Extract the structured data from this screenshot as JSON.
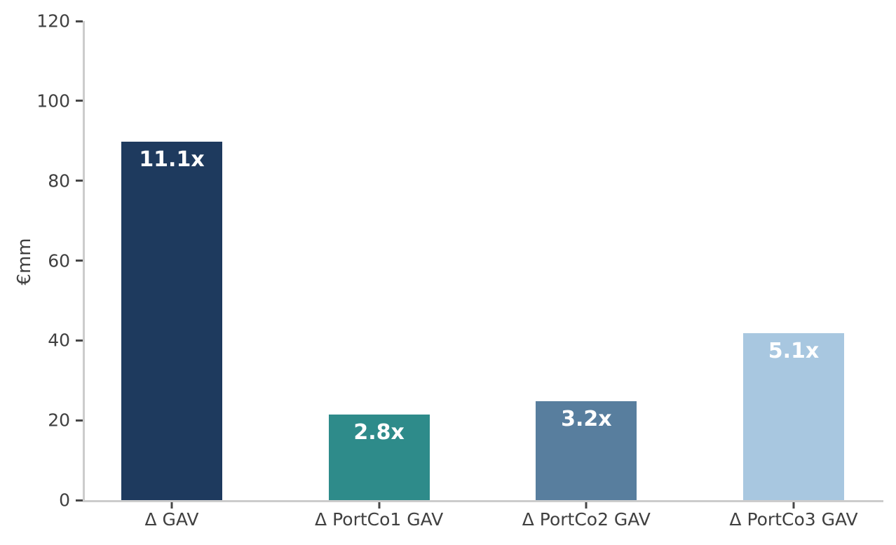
{
  "chart_data": {
    "type": "bar",
    "title": "",
    "xlabel": "",
    "ylabel": "€mm",
    "categories": [
      "Δ GAV",
      "Δ PortCo1 GAV",
      "Δ PortCo2 GAV",
      "Δ PortCo3 GAV"
    ],
    "values": [
      89.8,
      21.5,
      24.7,
      41.8
    ],
    "bar_labels": [
      "11.1x",
      "2.8x",
      "3.2x",
      "5.1x"
    ],
    "bar_colors": [
      "#1e3a5e",
      "#2e8b8a",
      "#587e9e",
      "#a8c7e0"
    ],
    "ylim": [
      0,
      120
    ],
    "yticks": [
      0,
      20,
      40,
      60,
      80,
      100,
      120
    ],
    "grid": false,
    "legend": false,
    "label_text_color": "#ffffff",
    "axis_color": "#cccccc",
    "tick_text_color": "#404040",
    "background_color": "#ffffff"
  }
}
